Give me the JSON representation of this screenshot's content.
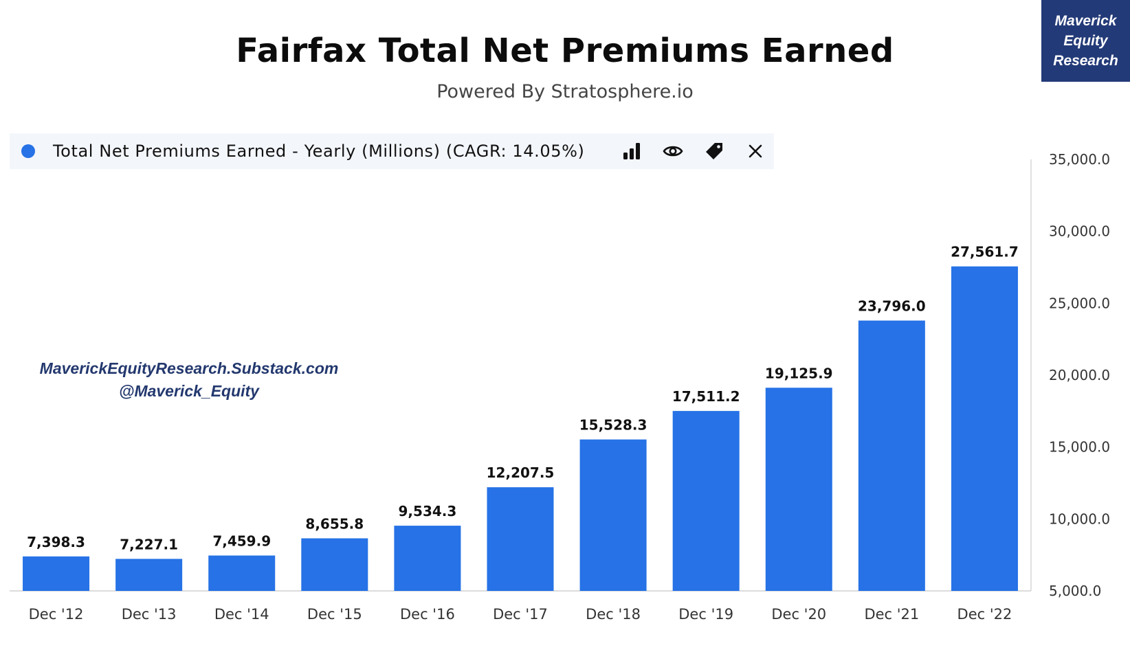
{
  "header": {
    "title": "Fairfax Total Net Premiums Earned",
    "subtitle": "Powered By Stratosphere.io"
  },
  "brand": {
    "line1": "Maverick",
    "line2": "Equity",
    "line3": "Research"
  },
  "legend": {
    "label": "Total Net Premiums Earned - Yearly (Millions) (CAGR: 14.05%)",
    "color": "#2672e6",
    "icons": [
      "bar-chart-icon",
      "eye-icon",
      "tag-icon",
      "close-icon"
    ]
  },
  "watermark": {
    "line1": "MaverickEquityResearch.Substack.com",
    "line2": "@Maverick_Equity"
  },
  "chart_data": {
    "type": "bar",
    "title": "Fairfax Total Net Premiums Earned",
    "subtitle": "Powered By Stratosphere.io",
    "categories": [
      "Dec '12",
      "Dec '13",
      "Dec '14",
      "Dec '15",
      "Dec '16",
      "Dec '17",
      "Dec '18",
      "Dec '19",
      "Dec '20",
      "Dec '21",
      "Dec '22"
    ],
    "series": [
      {
        "name": "Total Net Premiums Earned - Yearly (Millions) (CAGR: 14.05%)",
        "values": [
          7398.3,
          7227.1,
          7459.9,
          8655.8,
          9534.3,
          12207.5,
          15528.3,
          17511.2,
          19125.9,
          23796.0,
          27561.7
        ],
        "data_labels": [
          "7,398.3",
          "7,227.1",
          "7,459.9",
          "8,655.8",
          "9,534.3",
          "12,207.5",
          "15,528.3",
          "17,511.2",
          "19,125.9",
          "23,796.0",
          "27,561.7"
        ],
        "color": "#2672e6"
      }
    ],
    "ylim": [
      5000,
      35000
    ],
    "yticks": [
      "35,000.0",
      "30,000.0",
      "25,000.0",
      "20,000.0",
      "15,000.0",
      "10,000.0",
      "5,000.0"
    ],
    "ytick_values": [
      35000,
      30000,
      25000,
      20000,
      15000,
      10000,
      5000
    ],
    "y_axis_side": "right",
    "grid": false,
    "legend_position": "top-left"
  }
}
